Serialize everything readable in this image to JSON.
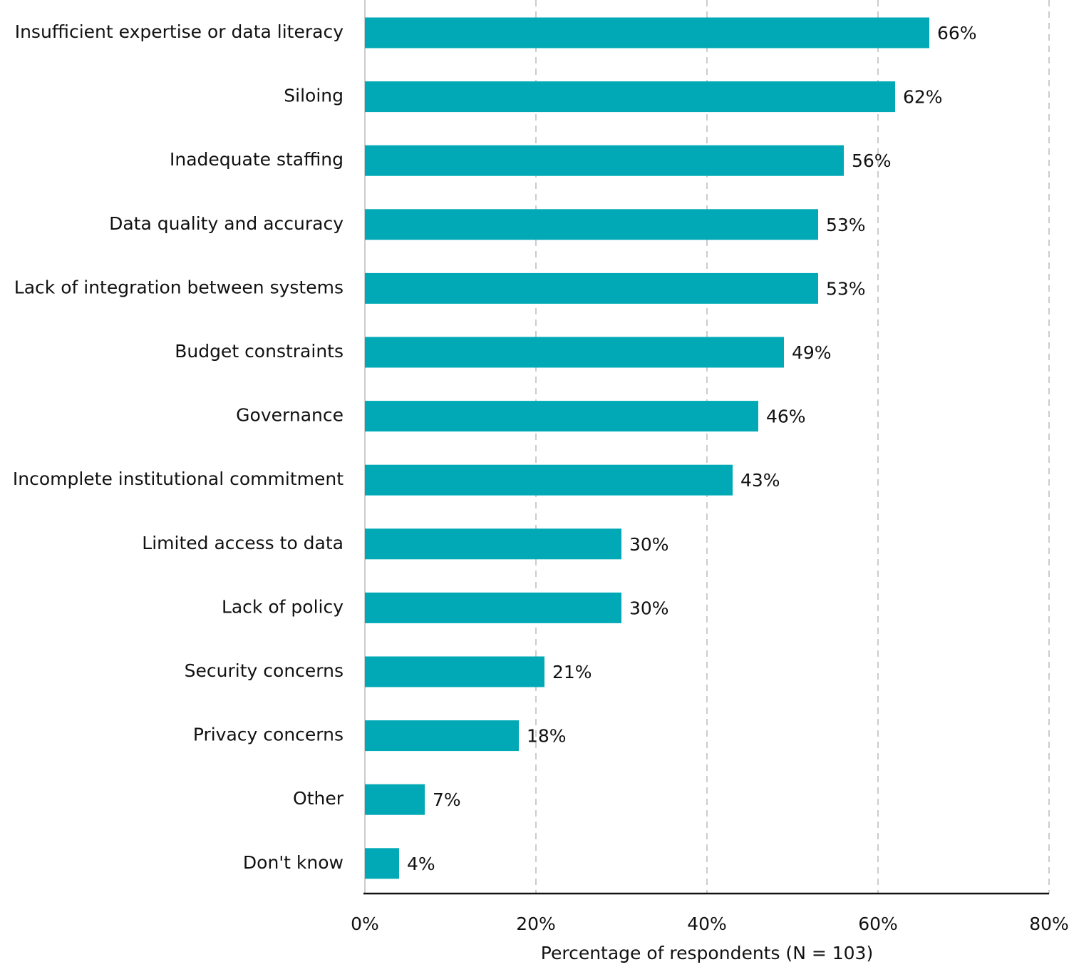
{
  "chart_data": {
    "type": "hbar",
    "xlabel": "Percentage of respondents (N = 103)",
    "categories": [
      "Insufficient expertise or data literacy",
      "Siloing",
      "Inadequate staffing",
      "Data quality and accuracy",
      "Lack of integration between systems",
      "Budget constraints",
      "Governance",
      "Incomplete institutional commitment",
      "Limited access to data",
      "Lack of policy",
      "Security concerns",
      "Privacy concerns",
      "Other",
      "Don't know"
    ],
    "values": [
      66,
      62,
      56,
      53,
      53,
      49,
      46,
      43,
      30,
      30,
      21,
      18,
      7,
      4
    ],
    "value_labels": [
      "66%",
      "62%",
      "56%",
      "53%",
      "53%",
      "49%",
      "46%",
      "43%",
      "30%",
      "30%",
      "21%",
      "18%",
      "7%",
      "4%"
    ],
    "color": "#00a9b5",
    "xlim": [
      0,
      80
    ],
    "xticks": [
      {
        "value": 0,
        "label": "0%"
      },
      {
        "value": 20,
        "label": "20%"
      },
      {
        "value": 40,
        "label": "40%"
      },
      {
        "value": 60,
        "label": "60%"
      },
      {
        "value": 80,
        "label": "80%"
      }
    ],
    "grid": true
  }
}
